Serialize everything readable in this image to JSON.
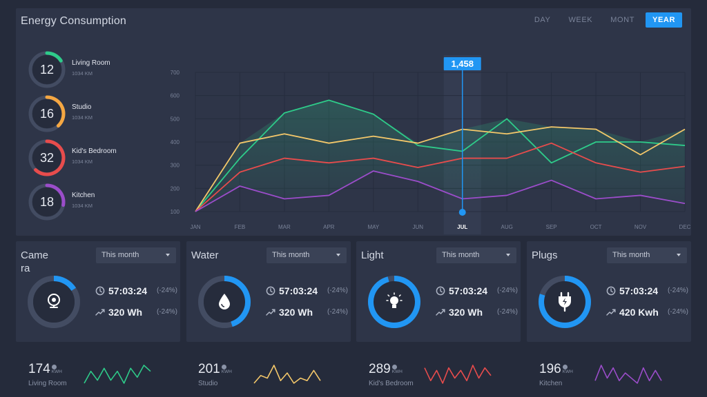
{
  "app": {
    "title": "Energy Consumption"
  },
  "tabs": [
    {
      "label": "DAY",
      "active": false
    },
    {
      "label": "WEEK",
      "active": false
    },
    {
      "label": "MONT",
      "active": false
    },
    {
      "label": "YEAR",
      "active": true
    }
  ],
  "rooms": [
    {
      "value": "12",
      "name": "Living Room",
      "sub": "1034 KM",
      "color": "#2ecc8a",
      "fraction": 0.16
    },
    {
      "value": "16",
      "name": "Studio",
      "sub": "1034 KM",
      "color": "#f5a742",
      "fraction": 0.38
    },
    {
      "value": "32",
      "name": "Kid's Bedroom",
      "sub": "1034 KM",
      "color": "#e84c4c",
      "fraction": 0.62
    },
    {
      "value": "18",
      "name": "Kitchen",
      "sub": "1034 KM",
      "color": "#9b4dca",
      "fraction": 0.28
    }
  ],
  "chart_data": {
    "type": "line",
    "categories": [
      "JAN",
      "FEB",
      "MAR",
      "APR",
      "MAY",
      "JUN",
      "JUL",
      "AUG",
      "SEP",
      "OCT",
      "NOV",
      "DEC"
    ],
    "highlighted_category": "JUL",
    "highlight_value": "1,458",
    "yticks": [
      100,
      200,
      300,
      400,
      500,
      600,
      700
    ],
    "ylim": [
      100,
      700
    ],
    "grid": true,
    "series": [
      {
        "color": "#2ecc8a",
        "values": [
          100,
          330,
          525,
          580,
          520,
          385,
          360,
          500,
          310,
          400,
          400,
          385
        ]
      },
      {
        "color": "#f5c86a",
        "values": [
          100,
          395,
          435,
          395,
          425,
          395,
          455,
          435,
          465,
          455,
          345,
          455
        ]
      },
      {
        "color": "#e84c4c",
        "values": [
          100,
          270,
          330,
          310,
          330,
          290,
          330,
          330,
          395,
          310,
          270,
          295
        ]
      },
      {
        "color": "#9b4dca",
        "values": [
          100,
          210,
          155,
          170,
          275,
          230,
          155,
          170,
          235,
          155,
          170,
          135
        ]
      }
    ]
  },
  "cards": [
    {
      "title": "Camera",
      "dropdown": "This month",
      "time": "57:03:24",
      "time_change": "(-24%)",
      "energy": "320 Wh",
      "energy_change": "(-24%)",
      "icon": "webcam-icon",
      "fraction": 0.16
    },
    {
      "title": "Water",
      "dropdown": "This month",
      "time": "57:03:24",
      "time_change": "(-24%)",
      "energy": "320 Wh",
      "energy_change": "(-24%)",
      "icon": "water-drop-icon",
      "fraction": 0.45
    },
    {
      "title": "Light",
      "dropdown": "This month",
      "time": "57:03:24",
      "time_change": "(-24%)",
      "energy": "320 Wh",
      "energy_change": "(-24%)",
      "icon": "light-bulb-icon",
      "fraction": 0.96
    },
    {
      "title": "Plugs",
      "dropdown": "This month",
      "time": "57:03:24",
      "time_change": "(-24%)",
      "energy": "420 Kwh",
      "energy_change": "(-24%)",
      "icon": "plug-icon",
      "fraction": 0.8
    }
  ],
  "sparks": [
    {
      "value": "174",
      "unit": "KWH",
      "label": "Living Room",
      "color": "#2ecc8a",
      "values": [
        3,
        7,
        4,
        8,
        4,
        7,
        3,
        8,
        5,
        9,
        7
      ]
    },
    {
      "value": "201",
      "unit": "KWH",
      "label": "Studio",
      "color": "#f5c86a",
      "values": [
        3,
        6,
        5,
        10,
        4,
        7,
        3,
        5,
        4,
        8,
        4
      ]
    },
    {
      "value": "289",
      "unit": "KWH",
      "label": "Kid's Bedroom",
      "color": "#e84c4c",
      "values": [
        8,
        3,
        7,
        2,
        8,
        4,
        7,
        3,
        9,
        4,
        8,
        5
      ]
    },
    {
      "value": "196",
      "unit": "KWH",
      "label": "Kitchen",
      "color": "#9b4dca",
      "values": [
        3,
        9,
        4,
        8,
        3,
        6,
        4,
        2,
        8,
        3,
        7,
        3
      ]
    }
  ]
}
